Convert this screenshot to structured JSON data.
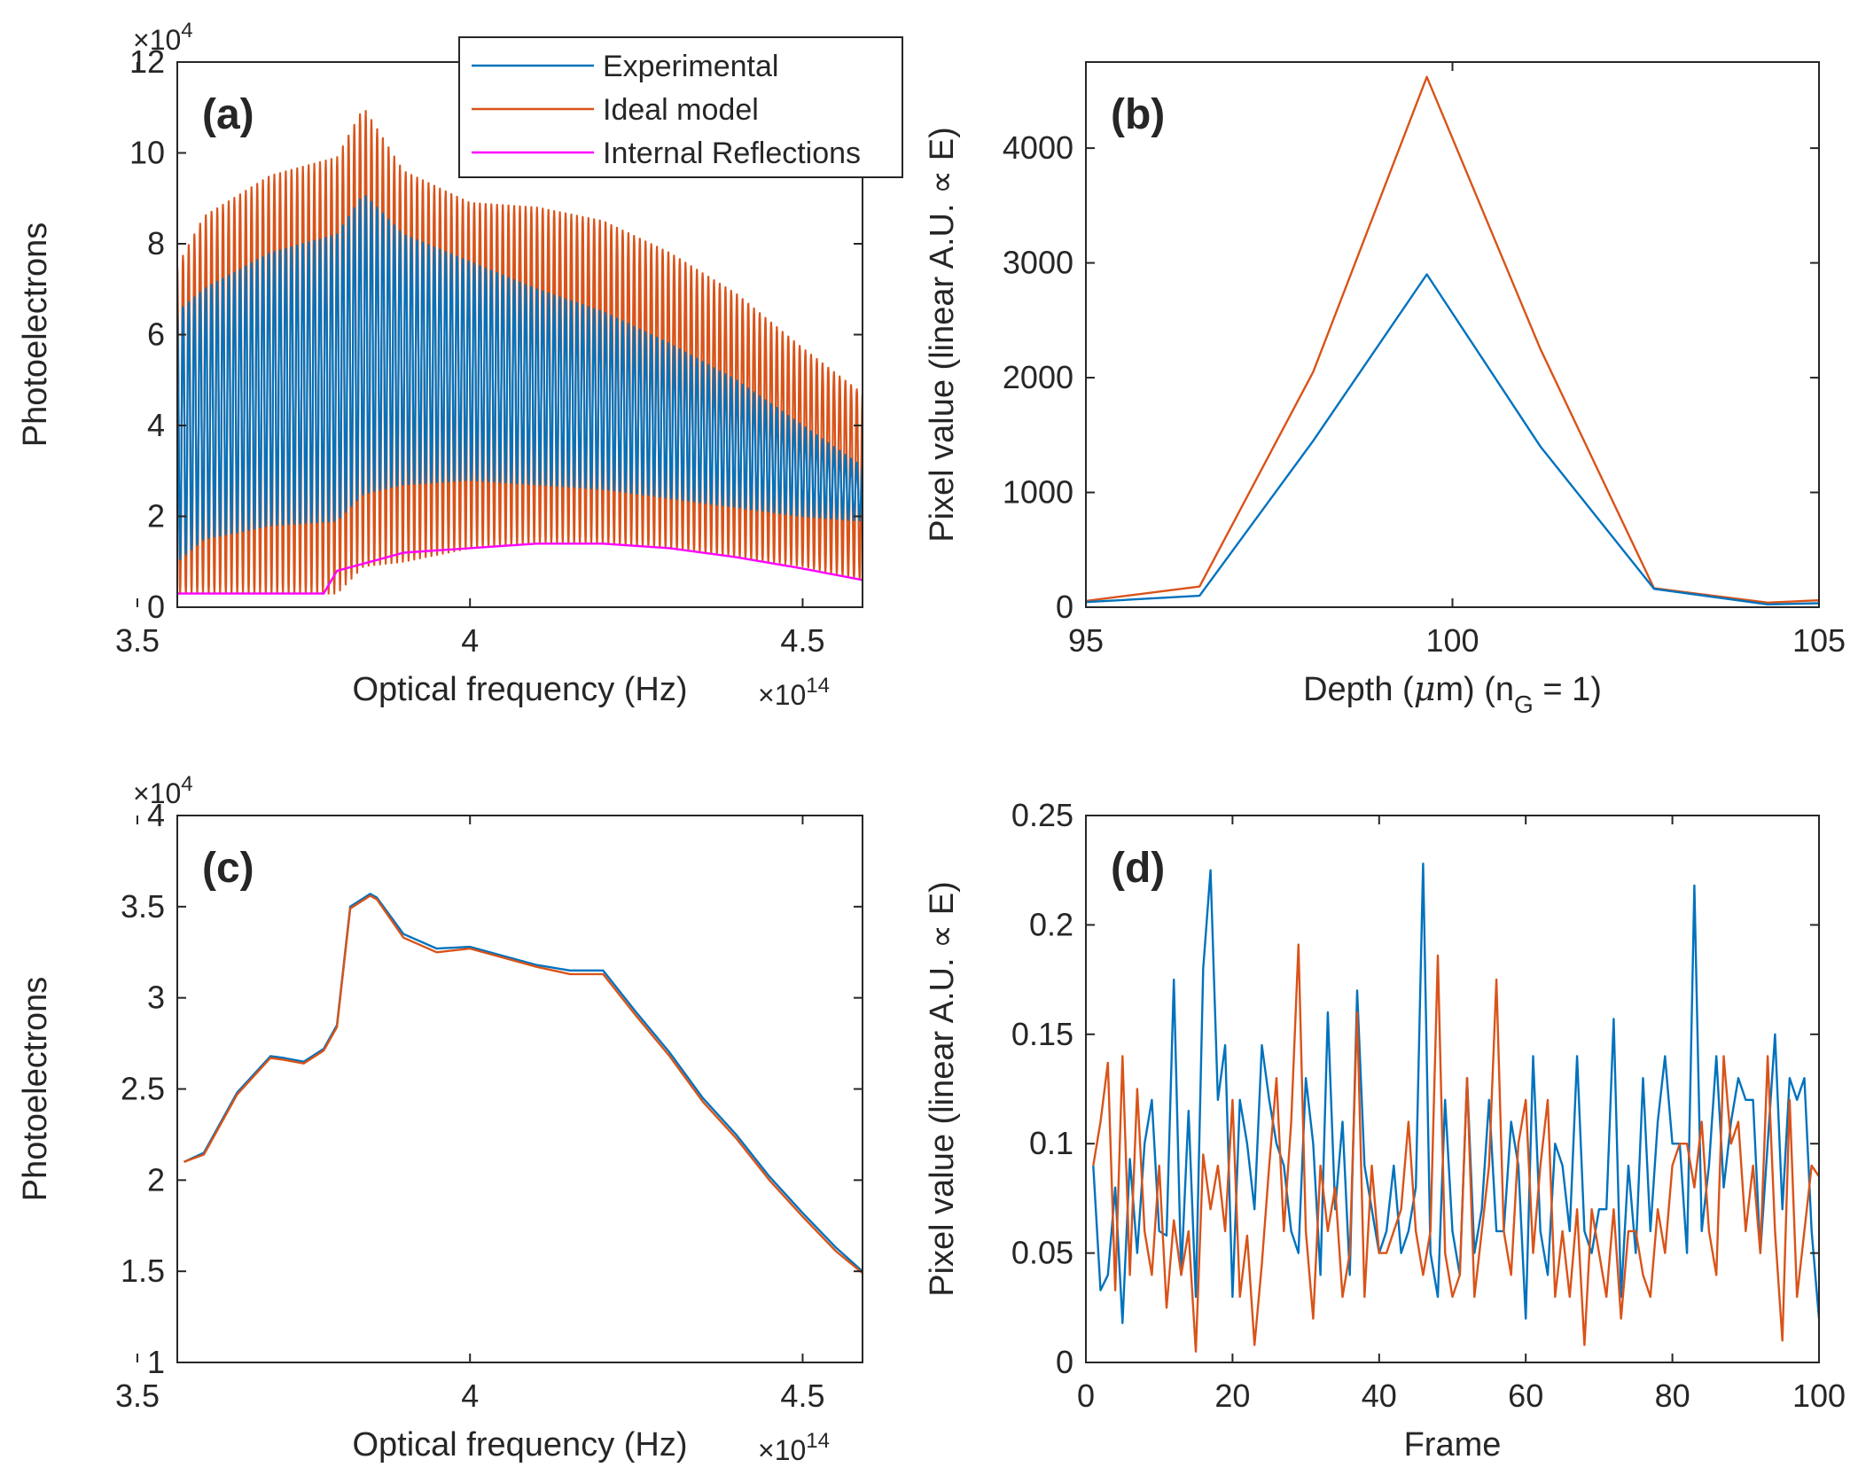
{
  "colors": {
    "experimental": "#0072BD",
    "ideal": "#D95319",
    "internal": "#FF00FF",
    "axis": "#262626"
  },
  "chart_data": [
    {
      "id": "a",
      "type": "line",
      "panel_label": "(a)",
      "xlabel": "Optical frequency (Hz)",
      "ylabel": "Photoelectrons",
      "x_exponent": {
        "base": "×10",
        "power": "14"
      },
      "y_exponent": {
        "base": "×10",
        "power": "4"
      },
      "xlim": [
        3.56,
        4.59
      ],
      "ylim": [
        0,
        12
      ],
      "xticks": [
        3.5,
        4,
        4.5
      ],
      "xtick_labels": [
        "3.5",
        "4",
        "4.5"
      ],
      "yticks": [
        0,
        2,
        4,
        6,
        8,
        10,
        12
      ],
      "ytick_labels": [
        "0",
        "2",
        "4",
        "6",
        "8",
        "10",
        "12"
      ],
      "legend_position": "top-right",
      "legend": [
        "Experimental",
        "Ideal model",
        "Internal Reflections"
      ],
      "series": [
        {
          "name": "Ideal model",
          "style": "oscillating",
          "envelope_x": [
            3.56,
            3.6,
            3.7,
            3.8,
            3.84,
            3.9,
            4.0,
            4.1,
            4.2,
            4.3,
            4.4,
            4.5,
            4.59
          ],
          "upper": [
            7.5,
            8.6,
            9.5,
            9.9,
            11.0,
            9.6,
            8.9,
            8.8,
            8.5,
            7.8,
            6.9,
            5.7,
            4.7
          ],
          "lower": [
            0.3,
            0.3,
            0.3,
            0.3,
            0.9,
            1.0,
            1.3,
            1.4,
            1.4,
            1.3,
            1.1,
            0.9,
            0.6
          ],
          "cycles": 120
        },
        {
          "name": "Experimental",
          "style": "oscillating",
          "envelope_x": [
            3.56,
            3.6,
            3.7,
            3.8,
            3.84,
            3.9,
            4.0,
            4.1,
            4.2,
            4.3,
            4.4,
            4.5,
            4.59
          ],
          "upper": [
            6.5,
            7.0,
            7.8,
            8.2,
            9.1,
            8.2,
            7.6,
            7.0,
            6.5,
            5.8,
            5.0,
            4.0,
            3.1
          ],
          "lower": [
            1.0,
            1.5,
            1.8,
            1.9,
            2.5,
            2.7,
            2.8,
            2.7,
            2.6,
            2.4,
            2.2,
            2.0,
            1.9
          ],
          "cycles": 120
        },
        {
          "name": "Internal Reflections",
          "x": [
            3.56,
            3.78,
            3.8,
            3.85,
            3.9,
            4.0,
            4.05,
            4.1,
            4.2,
            4.3,
            4.4,
            4.5,
            4.59
          ],
          "y": [
            0.3,
            0.3,
            0.8,
            1.0,
            1.2,
            1.3,
            1.35,
            1.4,
            1.4,
            1.3,
            1.1,
            0.85,
            0.6
          ]
        }
      ]
    },
    {
      "id": "b",
      "type": "line",
      "panel_label": "(b)",
      "xlabel_parts": [
        "Depth (",
        "μ",
        "m) (n",
        "G",
        " = 1)"
      ],
      "ylabel": "Pixel value (linear A.U. ∝ E)",
      "xlim": [
        95,
        105
      ],
      "ylim": [
        0,
        4750
      ],
      "xticks": [
        95,
        100,
        105
      ],
      "xtick_labels": [
        "95",
        "100",
        "105"
      ],
      "yticks": [
        0,
        1000,
        2000,
        3000,
        4000
      ],
      "ytick_labels": [
        "0",
        "1000",
        "2000",
        "3000",
        "4000"
      ],
      "series": [
        {
          "name": "Ideal model",
          "x": [
            95,
            96.55,
            98.1,
            99.65,
            101.2,
            102.75,
            104.3,
            105
          ],
          "y": [
            55,
            180,
            2050,
            4620,
            2250,
            165,
            40,
            60
          ]
        },
        {
          "name": "Experimental",
          "x": [
            95,
            96.55,
            98.1,
            99.65,
            101.2,
            102.75,
            104.3,
            105
          ],
          "y": [
            45,
            100,
            1450,
            2900,
            1400,
            160,
            25,
            35
          ]
        }
      ]
    },
    {
      "id": "c",
      "type": "line",
      "panel_label": "(c)",
      "xlabel": "Optical frequency (Hz)",
      "ylabel": "Photoelectrons",
      "x_exponent": {
        "base": "×10",
        "power": "14"
      },
      "y_exponent": {
        "base": "×10",
        "power": "4"
      },
      "xlim": [
        3.56,
        4.59
      ],
      "ylim": [
        1,
        4
      ],
      "xticks": [
        3.5,
        4,
        4.5
      ],
      "xtick_labels": [
        "3.5",
        "4",
        "4.5"
      ],
      "yticks": [
        1,
        1.5,
        2,
        2.5,
        3,
        3.5,
        4
      ],
      "ytick_labels": [
        "1",
        "1.5",
        "2",
        "2.5",
        "3",
        "3.5",
        "4"
      ],
      "series": [
        {
          "name": "Experimental",
          "x": [
            3.57,
            3.6,
            3.65,
            3.7,
            3.72,
            3.75,
            3.78,
            3.8,
            3.82,
            3.85,
            3.86,
            3.9,
            3.95,
            4.0,
            4.05,
            4.1,
            4.15,
            4.2,
            4.25,
            4.3,
            4.35,
            4.4,
            4.45,
            4.5,
            4.55,
            4.59
          ],
          "y": [
            2.1,
            2.15,
            2.48,
            2.68,
            2.67,
            2.65,
            2.72,
            2.85,
            3.5,
            3.57,
            3.55,
            3.35,
            3.27,
            3.28,
            3.23,
            3.18,
            3.15,
            3.15,
            2.92,
            2.7,
            2.45,
            2.25,
            2.02,
            1.82,
            1.63,
            1.5
          ]
        },
        {
          "name": "Ideal model",
          "x": [
            3.57,
            3.6,
            3.65,
            3.7,
            3.72,
            3.75,
            3.78,
            3.8,
            3.82,
            3.85,
            3.86,
            3.9,
            3.95,
            4.0,
            4.05,
            4.1,
            4.15,
            4.2,
            4.25,
            4.3,
            4.35,
            4.4,
            4.45,
            4.5,
            4.55,
            4.59
          ],
          "y": [
            2.1,
            2.14,
            2.47,
            2.67,
            2.66,
            2.64,
            2.71,
            2.84,
            3.49,
            3.56,
            3.54,
            3.33,
            3.25,
            3.27,
            3.22,
            3.17,
            3.13,
            3.13,
            2.9,
            2.68,
            2.43,
            2.23,
            2.0,
            1.8,
            1.61,
            1.49
          ]
        }
      ]
    },
    {
      "id": "d",
      "type": "line",
      "panel_label": "(d)",
      "xlabel": "Frame",
      "ylabel": "Pixel value (linear A.U. ∝ E)",
      "xlim": [
        0,
        100
      ],
      "ylim": [
        0,
        0.25
      ],
      "xticks": [
        0,
        20,
        40,
        60,
        80,
        100
      ],
      "xtick_labels": [
        "0",
        "20",
        "40",
        "60",
        "80",
        "100"
      ],
      "yticks": [
        0,
        0.05,
        0.1,
        0.15,
        0.2,
        0.25
      ],
      "ytick_labels": [
        "0",
        "0.05",
        "0.1",
        "0.15",
        "0.2",
        "0.25"
      ],
      "series": [
        {
          "name": "Experimental",
          "x": [
            1,
            2,
            3,
            4,
            5,
            6,
            7,
            8,
            9,
            10,
            11,
            12,
            13,
            14,
            15,
            16,
            17,
            18,
            19,
            20,
            21,
            22,
            23,
            24,
            25,
            26,
            27,
            28,
            29,
            30,
            31,
            32,
            33,
            34,
            35,
            36,
            37,
            38,
            39,
            40,
            41,
            42,
            43,
            44,
            45,
            46,
            47,
            48,
            49,
            50,
            51,
            52,
            53,
            54,
            55,
            56,
            57,
            58,
            59,
            60,
            61,
            62,
            63,
            64,
            65,
            66,
            67,
            68,
            69,
            70,
            71,
            72,
            73,
            74,
            75,
            76,
            77,
            78,
            79,
            80,
            81,
            82,
            83,
            84,
            85,
            86,
            87,
            88,
            89,
            90,
            91,
            92,
            93,
            94,
            95,
            96,
            97,
            98,
            99,
            100
          ],
          "y": [
            0.09,
            0.033,
            0.04,
            0.08,
            0.018,
            0.093,
            0.05,
            0.1,
            0.12,
            0.06,
            0.058,
            0.175,
            0.04,
            0.115,
            0.03,
            0.18,
            0.225,
            0.12,
            0.145,
            0.03,
            0.12,
            0.1,
            0.07,
            0.145,
            0.12,
            0.1,
            0.09,
            0.06,
            0.05,
            0.13,
            0.1,
            0.04,
            0.16,
            0.07,
            0.11,
            0.04,
            0.17,
            0.09,
            0.07,
            0.05,
            0.06,
            0.09,
            0.05,
            0.06,
            0.08,
            0.228,
            0.05,
            0.03,
            0.12,
            0.06,
            0.04,
            0.13,
            0.05,
            0.07,
            0.12,
            0.06,
            0.06,
            0.11,
            0.09,
            0.02,
            0.14,
            0.06,
            0.04,
            0.1,
            0.09,
            0.06,
            0.14,
            0.06,
            0.05,
            0.07,
            0.07,
            0.157,
            0.03,
            0.09,
            0.05,
            0.13,
            0.06,
            0.11,
            0.14,
            0.1,
            0.1,
            0.05,
            0.218,
            0.06,
            0.09,
            0.14,
            0.08,
            0.11,
            0.13,
            0.12,
            0.12,
            0.05,
            0.1,
            0.15,
            0.07,
            0.13,
            0.12,
            0.13,
            0.06,
            0.02
          ]
        },
        {
          "name": "Ideal model",
          "x": [
            1,
            2,
            3,
            4,
            5,
            6,
            7,
            8,
            9,
            10,
            11,
            12,
            13,
            14,
            15,
            16,
            17,
            18,
            19,
            20,
            21,
            22,
            23,
            24,
            25,
            26,
            27,
            28,
            29,
            30,
            31,
            32,
            33,
            34,
            35,
            36,
            37,
            38,
            39,
            40,
            41,
            42,
            43,
            44,
            45,
            46,
            47,
            48,
            49,
            50,
            51,
            52,
            53,
            54,
            55,
            56,
            57,
            58,
            59,
            60,
            61,
            62,
            63,
            64,
            65,
            66,
            67,
            68,
            69,
            70,
            71,
            72,
            73,
            74,
            75,
            76,
            77,
            78,
            79,
            80,
            81,
            82,
            83,
            84,
            85,
            86,
            87,
            88,
            89,
            90,
            91,
            92,
            93,
            94,
            95,
            96,
            97,
            98,
            99,
            100
          ],
          "y": [
            0.09,
            0.11,
            0.137,
            0.033,
            0.14,
            0.04,
            0.125,
            0.06,
            0.04,
            0.09,
            0.025,
            0.065,
            0.04,
            0.06,
            0.005,
            0.095,
            0.07,
            0.09,
            0.06,
            0.12,
            0.03,
            0.058,
            0.008,
            0.045,
            0.09,
            0.13,
            0.06,
            0.11,
            0.191,
            0.06,
            0.02,
            0.09,
            0.06,
            0.08,
            0.03,
            0.05,
            0.16,
            0.03,
            0.09,
            0.05,
            0.05,
            0.06,
            0.07,
            0.11,
            0.06,
            0.04,
            0.06,
            0.186,
            0.05,
            0.03,
            0.04,
            0.13,
            0.03,
            0.06,
            0.09,
            0.175,
            0.06,
            0.04,
            0.1,
            0.12,
            0.05,
            0.09,
            0.12,
            0.03,
            0.06,
            0.03,
            0.07,
            0.008,
            0.07,
            0.05,
            0.03,
            0.07,
            0.02,
            0.06,
            0.06,
            0.04,
            0.03,
            0.07,
            0.05,
            0.09,
            0.1,
            0.1,
            0.08,
            0.11,
            0.06,
            0.04,
            0.14,
            0.1,
            0.11,
            0.06,
            0.09,
            0.05,
            0.14,
            0.06,
            0.01,
            0.12,
            0.03,
            0.06,
            0.09,
            0.085
          ]
        }
      ]
    }
  ]
}
